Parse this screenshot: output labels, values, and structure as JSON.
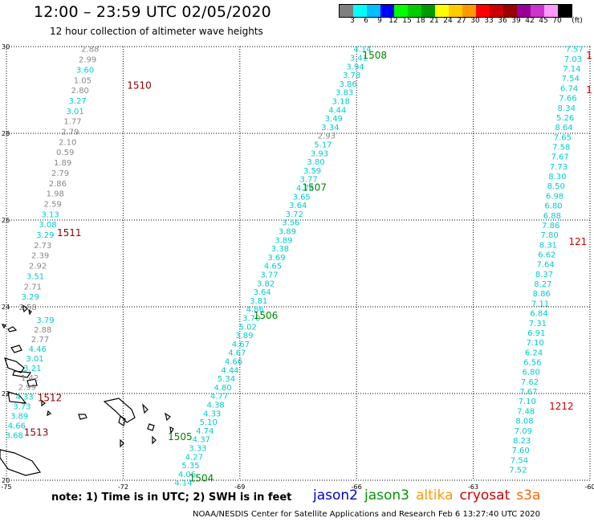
{
  "header": {
    "title": "12:00 – 23:59 UTC 02/05/2020",
    "subtitle": "12 hour collection of altimeter wave heights"
  },
  "colorbar": {
    "unit": "(ft)",
    "colors": [
      "#7f7f7f",
      "#00ffff",
      "#00bfff",
      "#0000ff",
      "#00ff00",
      "#00cc00",
      "#009900",
      "#ffff00",
      "#ffcc00",
      "#ff9900",
      "#ff0000",
      "#cc0000",
      "#990000",
      "#990099",
      "#cc33cc",
      "#ff99ff",
      "#000000"
    ],
    "labels": [
      "3",
      "6",
      "9",
      "12",
      "15",
      "18",
      "21",
      "24",
      "27",
      "30",
      "33",
      "36",
      "39",
      "42",
      "45",
      "70"
    ]
  },
  "axes": {
    "lat_labels": [
      "30",
      "28",
      "26",
      "24",
      "22",
      "20"
    ],
    "lon_labels": [
      "-75",
      "-72",
      "-69",
      "-66",
      "-63",
      "-60"
    ]
  },
  "tracks": [
    {
      "id": "1510",
      "color": "#8b0000",
      "label_lat": 29.1,
      "label_lon": -71.9,
      "label_size": 12
    },
    {
      "id": "1511",
      "color": "#8b0000",
      "label_lat": 25.7,
      "label_lon": -73.7,
      "label_size": 12
    },
    {
      "id": "1512",
      "color": "#8b0000",
      "label_lat": 21.9,
      "label_lon": -74.2,
      "label_size": 12
    },
    {
      "id": "1513",
      "color": "#8b0000",
      "label_lat": 21.1,
      "label_lon": -74.55,
      "label_size": 12
    },
    {
      "id": "1504",
      "color": "#008000",
      "label_lat": 20.05,
      "label_lon": -70.3,
      "label_size": 12
    },
    {
      "id": "1505",
      "color": "#008000",
      "label_lat": 21.0,
      "label_lon": -70.85,
      "label_size": 12
    },
    {
      "id": "1506",
      "color": "#008000",
      "label_lat": 23.8,
      "label_lon": -68.65,
      "label_size": 12
    },
    {
      "id": "1507",
      "color": "#008000",
      "label_lat": 26.75,
      "label_lon": -67.4,
      "label_size": 12
    },
    {
      "id": "1508",
      "color": "#008000",
      "label_lat": 29.8,
      "label_lon": -65.85,
      "label_size": 12
    },
    {
      "id": "1212",
      "color": "#cc0000",
      "label_lat": 21.7,
      "label_lon": -61.05,
      "label_size": 12
    },
    {
      "id": "121",
      "color": "#cc0000",
      "label_lat": 25.5,
      "label_lon": -60.55,
      "label_size": 12
    },
    {
      "id": "1",
      "color": "#cc0000",
      "label_lat": 29.0,
      "label_lon": -60.1,
      "label_size": 12
    },
    {
      "id": "1",
      "color": "#cc0000",
      "label_lat": 29.8,
      "label_lon": -60.1,
      "label_size": 12
    }
  ],
  "swh_groups": [
    {
      "group": "west-1510-1511",
      "color": "#888888",
      "start": [
        29.95,
        -72.85
      ],
      "end": [
        24.0,
        -74.45
      ],
      "values": [
        "2.88",
        "2.99",
        "3.60",
        "1.05",
        "2.80",
        "3.27",
        "3.01",
        "1.77",
        "2.79",
        "2.10",
        "0.59",
        "1.89",
        "2.79",
        "2.86",
        "1.98",
        "2.59",
        "3.13",
        "3.08",
        "3.29",
        "2.73",
        "2.39",
        "2.92",
        "3.51",
        "2.71",
        "3.29",
        "2.58"
      ],
      "cyan_idx": [
        2,
        5,
        6,
        16,
        17,
        18,
        22,
        24
      ]
    },
    {
      "group": "west-1512-1513",
      "color": "#888888",
      "start": [
        23.7,
        -74.0
      ],
      "end": [
        21.05,
        -74.8
      ],
      "values": [
        "3.79",
        "2.88",
        "2.77",
        "4.46",
        "3.01",
        "3.21",
        "1.42",
        "2.99",
        "4.33",
        "3.73",
        "3.89",
        "4.66",
        "3.68"
      ],
      "cyan_idx": [
        0,
        3,
        4,
        5,
        8,
        9,
        10,
        11,
        12
      ]
    },
    {
      "group": "central-jason3",
      "color": "#00cccc",
      "start": [
        29.95,
        -65.85
      ],
      "end": [
        19.95,
        -70.45
      ],
      "values": [
        "4.14",
        "3.41",
        "3.94",
        "3.78",
        "3.86",
        "3.83",
        "3.18",
        "4.44",
        "3.49",
        "3.34",
        "2.93",
        "5.17",
        "3.93",
        "3.80",
        "3.59",
        "3.77",
        "4.76",
        "3.65",
        "3.64",
        "3.72",
        "3.56",
        "3.89",
        "3.89",
        "3.38",
        "3.69",
        "4.65",
        "3.77",
        "3.82",
        "3.64",
        "3.81",
        "4.86",
        "3.70",
        "5.02",
        "3.89",
        "4.67",
        "4.67",
        "4.66",
        "4.44",
        "5.34",
        "4.80",
        "4.77",
        "4.38",
        "4.33",
        "5.10",
        "4.74",
        "4.37",
        "3.33",
        "4.27",
        "5.35",
        "4.06",
        "4.14"
      ],
      "gray_idx": [
        10
      ]
    },
    {
      "group": "east-cryosat",
      "color": "#00cccc",
      "start": [
        29.95,
        -60.4
      ],
      "end": [
        20.25,
        -61.85
      ],
      "values": [
        "7.57",
        "7.03",
        "7.14",
        "7.54",
        "6.74",
        "7.66",
        "8.34",
        "5.26",
        "8.64",
        "7.65",
        "7.58",
        "7.67",
        "7.73",
        "8.30",
        "8.50",
        "6.98",
        "6.80",
        "6.88",
        "7.86",
        "7.80",
        "8.31",
        "6.62",
        "7.64",
        "8.37",
        "8.27",
        "8.86",
        "7.11",
        "6.84",
        "7.31",
        "6.91",
        "7.10",
        "6.24",
        "6.56",
        "6.80",
        "7.62",
        "7.67",
        "7.10",
        "7.48",
        "8.08",
        "7.09",
        "8.23",
        "7.60",
        "7.54",
        "7.52"
      ],
      "gray_idx": []
    }
  ],
  "note": "note: 1) Time is in UTC; 2) SWH is in feet",
  "legend": [
    {
      "label": "jason2",
      "color": "#0000cc"
    },
    {
      "label": "jason3",
      "color": "#009900"
    },
    {
      "label": "altika",
      "color": "#ff9900"
    },
    {
      "label": "cryosat",
      "color": "#cc0000"
    },
    {
      "label": "s3a",
      "color": "#ff6600"
    }
  ],
  "credit": "NOAA/NESDIS Center for Satellite Applications and Research   Feb  6 13:27:40 UTC 2020"
}
